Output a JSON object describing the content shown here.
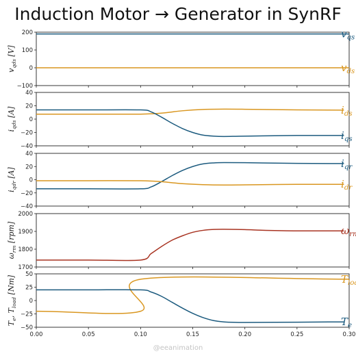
{
  "title": "Induction Motor → Generator in SynRF",
  "watermark": "@eeanimation",
  "colors": {
    "blue": "#1b5a7e",
    "orange": "#d9961f",
    "red": "#a83321"
  },
  "chart_data": [
    {
      "type": "line",
      "ylabel": "v_qds [V]",
      "xlim": [
        0,
        0.3
      ],
      "ylim": [
        -100,
        200
      ],
      "yticks": [
        "200",
        "100",
        "0",
        "−100"
      ],
      "series": [
        {
          "name": "v_qs",
          "color": "#1b5a7e",
          "x": [
            0,
            0.3
          ],
          "values": [
            190,
            190
          ]
        },
        {
          "name": "v_ds",
          "color": "#d9961f",
          "x": [
            0,
            0.3
          ],
          "values": [
            0,
            0
          ]
        }
      ]
    },
    {
      "type": "line",
      "ylabel": "i_qds [A]",
      "xlim": [
        0,
        0.3
      ],
      "ylim": [
        -40,
        40
      ],
      "yticks": [
        "40",
        "20",
        "0",
        "−20",
        "−40"
      ],
      "series": [
        {
          "name": "i_ds",
          "color": "#d9961f",
          "x": [
            0,
            0.05,
            0.1,
            0.12,
            0.14,
            0.16,
            0.18,
            0.2,
            0.25,
            0.295
          ],
          "values": [
            7.5,
            7.5,
            7.5,
            9,
            12.5,
            14.5,
            15,
            14.8,
            13.8,
            13.5
          ]
        },
        {
          "name": "i_qs",
          "color": "#1b5a7e",
          "x": [
            0,
            0.05,
            0.1,
            0.11,
            0.12,
            0.13,
            0.14,
            0.15,
            0.16,
            0.17,
            0.18,
            0.2,
            0.25,
            0.295
          ],
          "values": [
            13.8,
            13.8,
            13.8,
            11,
            3,
            -6,
            -14,
            -20,
            -24,
            -25.5,
            -26,
            -25.5,
            -24.5,
            -24.5
          ]
        }
      ]
    },
    {
      "type": "line",
      "ylabel": "i_qdr [A]",
      "xlim": [
        0,
        0.3
      ],
      "ylim": [
        -40,
        40
      ],
      "yticks": [
        "40",
        "20",
        "0",
        "−20",
        "−40"
      ],
      "series": [
        {
          "name": "i_qr",
          "color": "#1b5a7e",
          "x": [
            0,
            0.05,
            0.1,
            0.11,
            0.12,
            0.13,
            0.14,
            0.15,
            0.16,
            0.17,
            0.18,
            0.2,
            0.25,
            0.295
          ],
          "values": [
            -13.8,
            -13.8,
            -13.8,
            -11,
            -3,
            6,
            14,
            20,
            24,
            25.5,
            26,
            25.8,
            24.8,
            24.5
          ]
        },
        {
          "name": "i_dr",
          "color": "#d9961f",
          "x": [
            0,
            0.05,
            0.1,
            0.12,
            0.14,
            0.16,
            0.18,
            0.2,
            0.25,
            0.295
          ],
          "values": [
            -1.5,
            -1.5,
            -1.5,
            -3,
            -6,
            -7.5,
            -8,
            -7.8,
            -7,
            -7
          ]
        }
      ]
    },
    {
      "type": "line",
      "ylabel": "ω_rm [rpm]",
      "xlim": [
        0,
        0.3
      ],
      "ylim": [
        1700,
        2000
      ],
      "yticks": [
        "2000",
        "1900",
        "1800",
        "1700"
      ],
      "series": [
        {
          "name": "ω_rm",
          "color": "#a83321",
          "x": [
            0,
            0.05,
            0.1,
            0.11,
            0.12,
            0.13,
            0.14,
            0.15,
            0.16,
            0.17,
            0.18,
            0.2,
            0.22,
            0.25,
            0.295
          ],
          "values": [
            1739,
            1739,
            1739,
            1775,
            1815,
            1850,
            1875,
            1895,
            1906,
            1911,
            1912,
            1910,
            1906,
            1903,
            1903
          ]
        }
      ]
    },
    {
      "type": "line",
      "ylabel": "T_e, T_load [Nm]",
      "xlim": [
        0,
        0.3
      ],
      "ylim": [
        -50,
        50
      ],
      "yticks": [
        "50",
        "25",
        "0",
        "−25",
        "−50"
      ],
      "xticks": [
        "0.00",
        "0.05",
        "0.10",
        "0.15",
        "0.20",
        "0.25",
        "0.30"
      ],
      "series": [
        {
          "name": "T_load",
          "color": "#d9961f",
          "x": [
            0,
            0.1,
            0.1005,
            0.3
          ],
          "values": [
            -20,
            -20,
            40,
            40
          ]
        },
        {
          "name": "T_e",
          "color": "#1b5a7e",
          "x": [
            0,
            0.05,
            0.1,
            0.11,
            0.12,
            0.13,
            0.14,
            0.15,
            0.16,
            0.17,
            0.18,
            0.2,
            0.25,
            0.295
          ],
          "values": [
            20,
            20,
            20,
            16,
            8,
            -3,
            -14,
            -24,
            -32,
            -37.5,
            -40,
            -41,
            -40.5,
            -40
          ]
        }
      ]
    }
  ]
}
